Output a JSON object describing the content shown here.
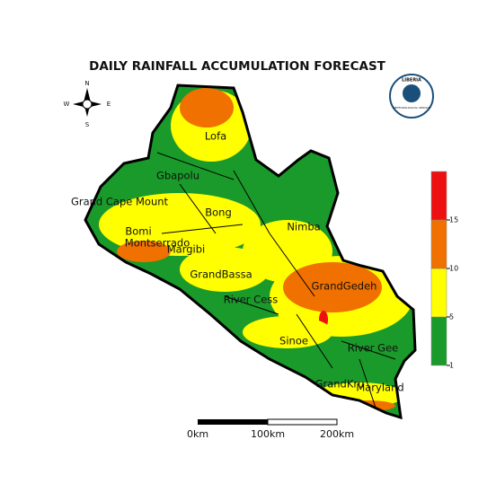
{
  "title": "DAILY RAINFALL ACCUMULATION FORECAST",
  "compass": {
    "north": "N",
    "south": "S",
    "east": "E",
    "west": "W"
  },
  "logo": {
    "name": "LIBERIA",
    "subtitle": "METEOROLOGICAL SERVICE"
  },
  "counties": [
    "Lofa",
    "Gbapolu",
    "Grand Cape Mount",
    "Bong",
    "Nimba",
    "Bomi",
    "Montserrado",
    "Margibi",
    "GrandBassa",
    "River Cess",
    "GrandGedeh",
    "Sinoe",
    "River Gee",
    "GrandKru",
    "Maryland"
  ],
  "legend": {
    "ticks": [
      1,
      5,
      10,
      15
    ],
    "colors": [
      "#1a9a2a",
      "#ffff00",
      "#f07000",
      "#ee1010"
    ]
  },
  "scale_bar": {
    "labels": [
      "0km",
      "100km",
      "200km"
    ]
  }
}
